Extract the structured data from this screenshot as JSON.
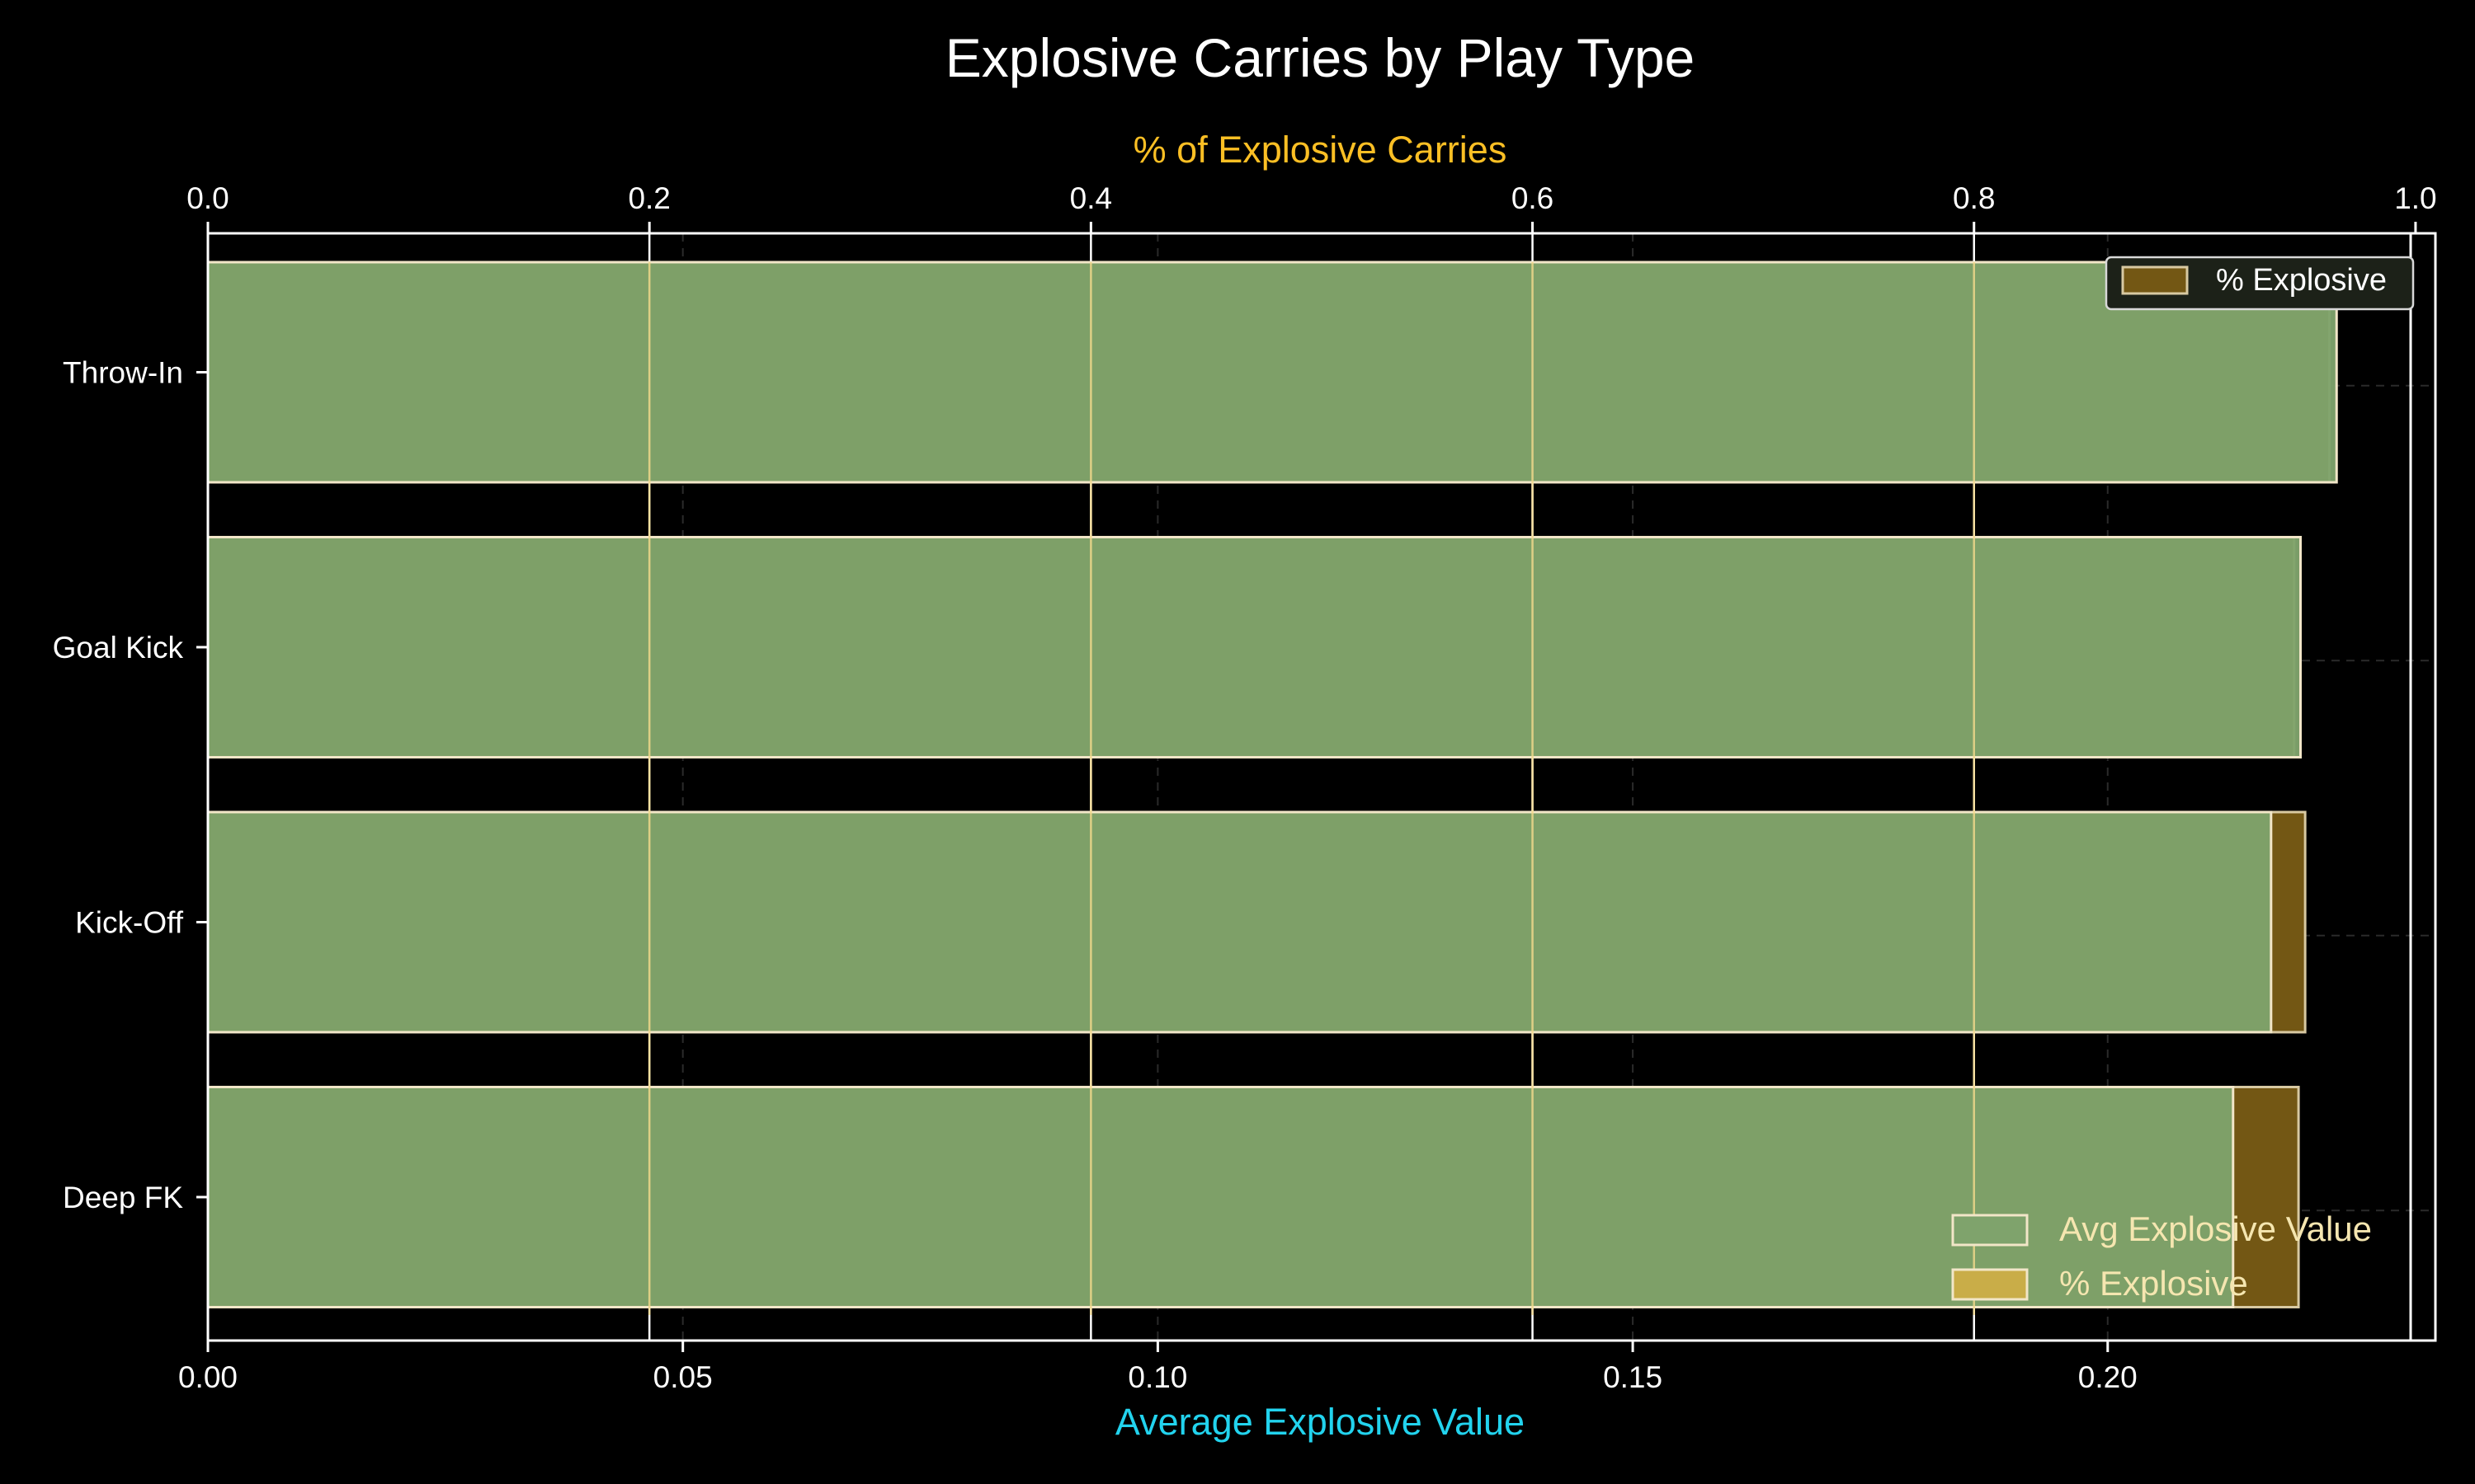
{
  "chart_data": {
    "type": "bar",
    "orientation": "horizontal",
    "title": "Explosive Carries by Play Type",
    "categories": [
      "Throw-In",
      "Goal Kick",
      "Kick-Off",
      "Deep FK"
    ],
    "series": [
      {
        "name": "Avg Explosive Value",
        "axis": "bottom",
        "values": [
          0.2241,
          0.2203,
          0.2172,
          0.2132
        ]
      },
      {
        "name": "% Explosive",
        "axis": "top",
        "values": [
          0.961,
          0.945,
          0.95,
          0.947
        ]
      }
    ],
    "bottom_axis": {
      "label": "Average Explosive Value",
      "range": [
        0,
        0.2345
      ],
      "ticks": [
        {
          "v": 0.0,
          "label": "0.00"
        },
        {
          "v": 0.05,
          "label": "0.05"
        },
        {
          "v": 0.1,
          "label": "0.10"
        },
        {
          "v": 0.15,
          "label": "0.15"
        },
        {
          "v": 0.2,
          "label": "0.20"
        }
      ]
    },
    "top_axis": {
      "label": "% of Explosive Carries",
      "range": [
        0,
        1.009
      ],
      "ticks": [
        {
          "v": 0.0,
          "label": "0.0"
        },
        {
          "v": 0.2,
          "label": "0.2"
        },
        {
          "v": 0.4,
          "label": "0.4"
        },
        {
          "v": 0.6,
          "label": "0.6"
        },
        {
          "v": 0.8,
          "label": "0.8"
        },
        {
          "v": 1.0,
          "label": "1.0"
        }
      ]
    },
    "legends": [
      {
        "placement": "top-right",
        "entries": [
          "% Explosive"
        ]
      },
      {
        "placement": "bottom-right",
        "entries": [
          "Avg Explosive Value",
          "% Explosive"
        ]
      }
    ],
    "grid": true,
    "colors": {
      "background": "#000000",
      "avg_fill": "#7fa36c",
      "avg_edge": "#f2e6c8",
      "pct_fill": "#735714",
      "pct_edge": "#d8c9a2",
      "pct_grid": "#f5d98a",
      "title": "#ffffff",
      "bottom_label": "#22d3ee",
      "top_label": "#fbbf24",
      "legend2_text": "#f5e6b0",
      "legend2_pct_swatch": "#c9ad48"
    }
  }
}
